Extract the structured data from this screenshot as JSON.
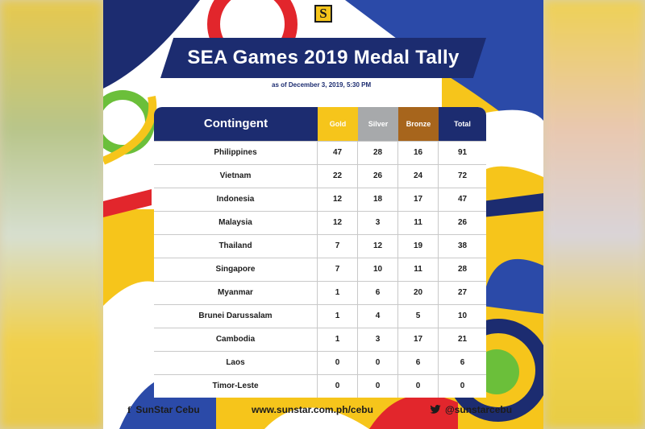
{
  "logo": "S",
  "title": "SEA Games 2019 Medal Tally",
  "as_of": "as of December 3, 2019, 5:30 PM",
  "headers": {
    "contingent": "Contingent",
    "gold": "Gold",
    "silver": "Silver",
    "bronze": "Bronze",
    "total": "Total"
  },
  "rows": [
    {
      "name": "Philippines",
      "gold": "47",
      "silver": "28",
      "bronze": "16",
      "total": "91"
    },
    {
      "name": "Vietnam",
      "gold": "22",
      "silver": "26",
      "bronze": "24",
      "total": "72"
    },
    {
      "name": "Indonesia",
      "gold": "12",
      "silver": "18",
      "bronze": "17",
      "total": "47"
    },
    {
      "name": "Malaysia",
      "gold": "12",
      "silver": "3",
      "bronze": "11",
      "total": "26"
    },
    {
      "name": "Thailand",
      "gold": "7",
      "silver": "12",
      "bronze": "19",
      "total": "38"
    },
    {
      "name": "Singapore",
      "gold": "7",
      "silver": "10",
      "bronze": "11",
      "total": "28"
    },
    {
      "name": "Myanmar",
      "gold": "1",
      "silver": "6",
      "bronze": "20",
      "total": "27"
    },
    {
      "name": "Brunei Darussalam",
      "gold": "1",
      "silver": "4",
      "bronze": "5",
      "total": "10"
    },
    {
      "name": "Cambodia",
      "gold": "1",
      "silver": "3",
      "bronze": "17",
      "total": "21"
    },
    {
      "name": "Laos",
      "gold": "0",
      "silver": "0",
      "bronze": "6",
      "total": "6"
    },
    {
      "name": "Timor-Leste",
      "gold": "0",
      "silver": "0",
      "bronze": "0",
      "total": "0"
    }
  ],
  "footer": {
    "facebook_icon": "f",
    "facebook": "SunStar Cebu",
    "website": "www.sunstar.com.ph/cebu",
    "twitter": "@sunstarcebu"
  },
  "colors": {
    "navy": "#1c2c70",
    "yellow": "#f6c51b",
    "gold": "#f6c51b",
    "silver": "#a7a9ab",
    "bronze": "#a7651c",
    "red": "#e2262c",
    "green": "#6bbf3a",
    "blue": "#2b4aa8"
  }
}
